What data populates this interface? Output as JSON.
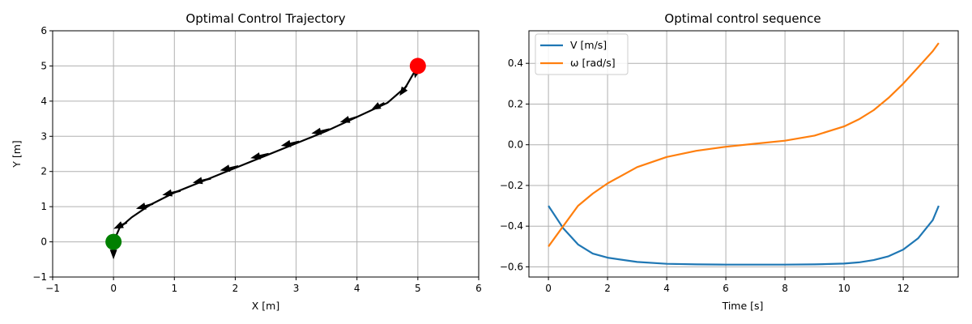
{
  "chart_data": [
    {
      "type": "scatter",
      "title": "Optimal Control Trajectory",
      "xlabel": "X [m]",
      "ylabel": "Y [m]",
      "xlim": [
        -1,
        6
      ],
      "ylim": [
        -1,
        6
      ],
      "xticks": [
        -1,
        0,
        1,
        2,
        3,
        4,
        5,
        6
      ],
      "yticks": [
        -1,
        0,
        1,
        2,
        3,
        4,
        5,
        6
      ],
      "grid": true,
      "path": {
        "x": [
          0.0,
          0.1,
          0.3,
          0.6,
          1.0,
          1.5,
          2.0,
          2.5,
          3.0,
          3.5,
          4.0,
          4.5,
          4.8,
          5.0
        ],
        "y": [
          0.0,
          0.4,
          0.7,
          1.05,
          1.4,
          1.75,
          2.1,
          2.45,
          2.8,
          3.15,
          3.55,
          3.95,
          4.4,
          5.0
        ]
      },
      "arrows": [
        {
          "x": 0.0,
          "y": 0.0,
          "dx": 0.0,
          "dy": -0.5
        },
        {
          "x": 0.22,
          "y": 0.55,
          "dx": -0.22,
          "dy": -0.18
        },
        {
          "x": 0.65,
          "y": 1.08,
          "dx": -0.28,
          "dy": -0.14
        },
        {
          "x": 1.1,
          "y": 1.45,
          "dx": -0.3,
          "dy": -0.12
        },
        {
          "x": 1.6,
          "y": 1.8,
          "dx": -0.3,
          "dy": -0.12
        },
        {
          "x": 2.05,
          "y": 2.15,
          "dx": -0.3,
          "dy": -0.12
        },
        {
          "x": 2.55,
          "y": 2.5,
          "dx": -0.3,
          "dy": -0.12
        },
        {
          "x": 3.05,
          "y": 2.85,
          "dx": -0.3,
          "dy": -0.12
        },
        {
          "x": 3.55,
          "y": 3.2,
          "dx": -0.3,
          "dy": -0.12
        },
        {
          "x": 4.0,
          "y": 3.55,
          "dx": -0.28,
          "dy": -0.15
        },
        {
          "x": 4.45,
          "y": 3.95,
          "dx": -0.22,
          "dy": -0.2
        },
        {
          "x": 4.82,
          "y": 4.45,
          "dx": -0.12,
          "dy": -0.3
        },
        {
          "x": 5.0,
          "y": 5.0,
          "dx": -0.05,
          "dy": -0.35
        }
      ],
      "start": {
        "x": 0,
        "y": 0,
        "color": "#008000"
      },
      "goal": {
        "x": 5,
        "y": 5,
        "color": "#ff0000"
      }
    },
    {
      "type": "line",
      "title": "Optimal control sequence",
      "xlabel": "Time [s]",
      "ylabel": "",
      "xlim": [
        -0.66,
        13.86
      ],
      "ylim": [
        -0.65,
        0.56
      ],
      "xticks": [
        0,
        2,
        4,
        6,
        8,
        10,
        12
      ],
      "yticks": [
        -0.6,
        -0.4,
        -0.2,
        0.0,
        0.2,
        0.4
      ],
      "ytick_labels": [
        "−0.6",
        "−0.4",
        "−0.2",
        "0.0",
        "0.2",
        "0.4"
      ],
      "grid": true,
      "legend_position": "top-left",
      "x": [
        0,
        0.5,
        1,
        1.5,
        2,
        3,
        4,
        5,
        6,
        7,
        8,
        9,
        10,
        10.5,
        11,
        11.5,
        12,
        12.5,
        13,
        13.2
      ],
      "series": [
        {
          "name": "V [m/s]",
          "color": "#1f77b4",
          "values": [
            -0.3,
            -0.41,
            -0.49,
            -0.535,
            -0.555,
            -0.576,
            -0.585,
            -0.588,
            -0.589,
            -0.589,
            -0.589,
            -0.588,
            -0.584,
            -0.578,
            -0.567,
            -0.548,
            -0.515,
            -0.46,
            -0.37,
            -0.3
          ]
        },
        {
          "name": "ω [rad/s]",
          "color": "#ff7f0e",
          "values": [
            -0.5,
            -0.4,
            -0.3,
            -0.24,
            -0.19,
            -0.11,
            -0.06,
            -0.03,
            -0.01,
            0.005,
            0.02,
            0.045,
            0.09,
            0.125,
            0.17,
            0.23,
            0.3,
            0.38,
            0.46,
            0.5
          ]
        }
      ]
    }
  ]
}
